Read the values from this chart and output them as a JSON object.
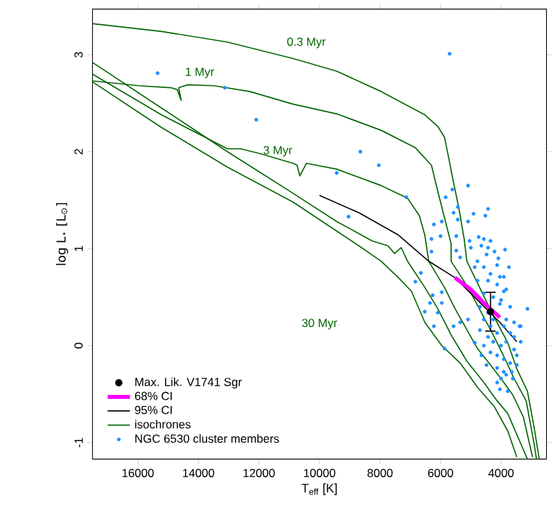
{
  "chart_data": {
    "type": "scatter",
    "xlabel": "T$_{eff}$ [K]",
    "ylabel": "log L$_{⋆}$ [L$_{⊙}$]",
    "xlim": [
      17500,
      2500
    ],
    "ylim": [
      -1.17,
      3.47
    ],
    "xticks": [
      16000,
      14000,
      12000,
      10000,
      8000,
      6000,
      4000
    ],
    "yticks": [
      -1,
      0,
      1,
      2,
      3
    ],
    "legend": "bottom left",
    "annotations": [
      "0.3 Myr",
      "1 Myr",
      "3 Myr",
      "30 Myr"
    ],
    "series": [
      {
        "name": "NGC 6530 cluster members",
        "type": "scatter",
        "marker": "circle",
        "color": "#1e90ff",
        "x": [
          15350,
          13130,
          12090,
          5700,
          8650,
          8040,
          9430,
          7130,
          9040,
          5610,
          5090,
          5830,
          5430,
          4430,
          4520,
          4910,
          5570,
          5960,
          6220,
          5430,
          5090,
          6000,
          6300,
          5480,
          5040,
          4740,
          4570,
          4350,
          4650,
          4430,
          4220,
          3870,
          6300,
          5480,
          5000,
          5350,
          6650,
          6830,
          6260,
          5960,
          6350,
          5960,
          6220,
          5870,
          5570,
          5350,
          5090,
          4700,
          3130,
          3350,
          3570,
          3910,
          4040,
          6520,
          6090,
          4870,
          4650,
          4480,
          4130,
          4040,
          3780,
          3610,
          3830,
          4780,
          4570,
          4350,
          4130,
          4430,
          4130,
          3910,
          4570,
          4260,
          4000,
          3830,
          3700,
          4570,
          4350,
          4130,
          3910,
          3700,
          4430,
          4260,
          4000,
          3830,
          3570,
          4350,
          4130,
          3910,
          3700,
          3480,
          4130,
          3910,
          3650,
          4000,
          4430,
          4260,
          3830,
          3570,
          4570,
          3480,
          4040,
          4780,
          4870,
          4480,
          4090,
          3740,
          4700,
          3390,
          3350
        ],
        "values": [
          2.81,
          2.66,
          2.33,
          3.01,
          2.0,
          1.86,
          1.78,
          1.53,
          1.33,
          1.61,
          1.65,
          1.53,
          1.43,
          1.41,
          1.34,
          1.36,
          1.37,
          1.28,
          1.25,
          1.3,
          1.28,
          1.13,
          1.1,
          1.13,
          1.08,
          1.12,
          1.1,
          1.08,
          1.03,
          1.01,
          0.97,
          0.99,
          0.97,
          0.98,
          1.01,
          0.91,
          0.75,
          0.66,
          0.52,
          0.55,
          0.44,
          0.44,
          0.2,
          -0.03,
          0.2,
          0.24,
          0.27,
          0.16,
          0.38,
          0.2,
          0.24,
          0.56,
          0.43,
          0.35,
          0.34,
          0.03,
          -0.1,
          -0.2,
          -0.38,
          -0.45,
          -0.47,
          -0.34,
          -0.3,
          0.87,
          0.81,
          0.74,
          0.83,
          0.67,
          0.63,
          0.71,
          0.54,
          0.5,
          0.47,
          0.58,
          0.4,
          0.27,
          0.2,
          0.13,
          0.2,
          0.13,
          0.09,
          0.04,
          0,
          0.04,
          -0.04,
          -0.07,
          -0.1,
          -0.14,
          -0.18,
          -0.1,
          -0.23,
          -0.27,
          -0.27,
          -0.34,
          0.34,
          0.27,
          0.27,
          0.09,
          0,
          -0.2,
          0.71,
          0.67,
          0.81,
          0.94,
          0.9,
          0.81,
          0.4,
          0.2,
          0.04
        ]
      },
      {
        "name": "isochrones",
        "type": "line",
        "marker": "none",
        "color": "#006400",
        "x": [
          17500,
          15220,
          13040,
          10870,
          9430,
          7960,
          6520,
          6090,
          5870,
          5740,
          5570,
          5390,
          5220,
          5130,
          4650,
          4220,
          3780,
          3480,
          3130,
          2910,
          2740
        ],
        "values": [
          3.32,
          3.24,
          3.13,
          2.96,
          2.83,
          2.62,
          2.38,
          2.26,
          2.15,
          1.95,
          1.68,
          1.41,
          1.1,
          0.87,
          0.56,
          0.29,
          0.03,
          -0.24,
          -0.47,
          -0.84,
          -1.17
        ]
      },
      {
        "type": "line",
        "marker": "none",
        "color": "#006400",
        "x": [
          17500,
          15960,
          14910,
          14700,
          14570,
          14650,
          14350,
          13480,
          12300,
          10870,
          9430,
          7960,
          6830,
          6300,
          6090,
          5870,
          5650,
          5650,
          5090,
          4650,
          4260,
          3910,
          3570,
          3170,
          2910,
          2830
        ],
        "values": [
          2.73,
          2.68,
          2.66,
          2.64,
          2.53,
          2.66,
          2.69,
          2.68,
          2.62,
          2.49,
          2.39,
          2.22,
          2.04,
          1.86,
          1.59,
          1.32,
          1.05,
          0.87,
          0.6,
          0.34,
          0.11,
          -0.11,
          -0.34,
          -0.57,
          -1.01,
          -1.17
        ]
      },
      {
        "type": "line",
        "marker": "none",
        "color": "#006400",
        "x": [
          17500,
          15220,
          13040,
          12610,
          11960,
          10870,
          10740,
          10650,
          10430,
          9430,
          7960,
          7090,
          6700,
          6520,
          6390,
          5870,
          5520,
          4780,
          4350,
          4000,
          3610,
          3260,
          2960
        ],
        "values": [
          2.8,
          2.38,
          2.03,
          2.03,
          1.98,
          1.88,
          1.86,
          1.75,
          1.88,
          1.82,
          1.65,
          1.52,
          1.34,
          1.14,
          0.87,
          0.6,
          0.38,
          -0.03,
          -0.2,
          -0.34,
          -0.51,
          -0.74,
          -1.15
        ]
      },
      {
        "type": "line",
        "marker": "none",
        "color": "#006400",
        "x": [
          17500,
          15220,
          13040,
          10870,
          9430,
          8260,
          7740,
          7520,
          7300,
          7090,
          6520,
          6090,
          5650,
          5130,
          4570,
          4130,
          3780,
          3350,
          3130
        ],
        "values": [
          2.92,
          2.45,
          2.0,
          1.57,
          1.28,
          1.08,
          1.03,
          0.95,
          1.01,
          0.87,
          0.6,
          0.38,
          0.11,
          -0.16,
          -0.38,
          -0.57,
          -0.7,
          -1.01,
          -1.17
        ]
      },
      {
        "type": "line",
        "marker": "none",
        "color": "#006400",
        "x": [
          17500,
          15220,
          13040,
          10870,
          9570,
          8700,
          7960,
          7390,
          6960,
          6520,
          5960,
          5350,
          4780,
          4220,
          3780,
          3480
        ],
        "values": [
          2.72,
          2.25,
          1.84,
          1.48,
          1.21,
          1.03,
          0.87,
          0.7,
          0.56,
          0.24,
          0,
          -0.18,
          -0.43,
          -0.63,
          -0.88,
          -1.15
        ]
      },
      {
        "name": "95% CI",
        "type": "line",
        "marker": "none",
        "color": "#000000",
        "x": [
          10000,
          8700,
          7390,
          6390,
          5520,
          4780,
          4040,
          3480
        ],
        "values": [
          1.55,
          1.37,
          1.14,
          0.87,
          0.7,
          0.47,
          0.24,
          0.04
        ]
      },
      {
        "name": "68% CI",
        "type": "line",
        "marker": "none",
        "color": "#ff00ff",
        "x": [
          5520,
          5000,
          4570,
          4040
        ],
        "values": [
          0.7,
          0.58,
          0.44,
          0.29
        ]
      },
      {
        "name": "Max. Lik. V1741 Sgr",
        "type": "scatter",
        "marker": "circle",
        "color": "#000000",
        "x": [
          4350
        ],
        "values": [
          0.35
        ],
        "errors": [
          0.2
        ]
      }
    ]
  }
}
